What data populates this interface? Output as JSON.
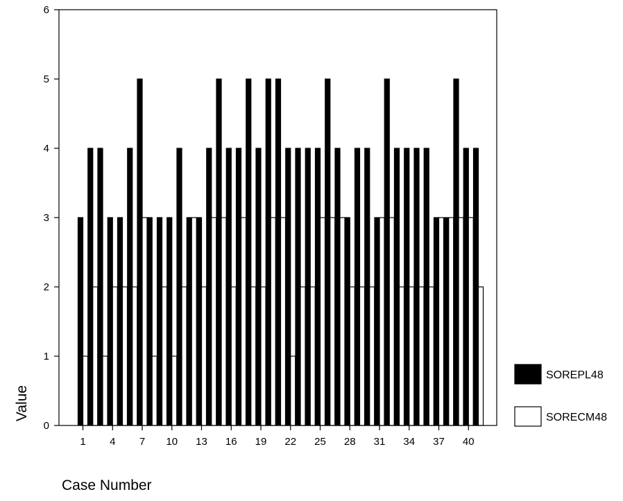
{
  "chart_data": {
    "type": "bar",
    "xlabel": "Case Number",
    "ylabel": "Value",
    "ylim": [
      0,
      6
    ],
    "yticks": [
      "0",
      "1",
      "2",
      "3",
      "4",
      "5",
      "6"
    ],
    "x_tick_labels": [
      "1",
      "4",
      "7",
      "10",
      "13",
      "16",
      "19",
      "22",
      "25",
      "28",
      "31",
      "34",
      "37",
      "40"
    ],
    "x_tick_cases": [
      1,
      4,
      7,
      10,
      13,
      16,
      19,
      22,
      25,
      28,
      31,
      34,
      37,
      40
    ],
    "categories": [
      1,
      2,
      3,
      4,
      5,
      6,
      7,
      8,
      9,
      10,
      11,
      12,
      13,
      14,
      15,
      16,
      17,
      18,
      19,
      20,
      21,
      22,
      23,
      24,
      25,
      26,
      27,
      28,
      29,
      30,
      31,
      32,
      33,
      34,
      35,
      36,
      37,
      38,
      39,
      40,
      41
    ],
    "grid": false,
    "legend_position": "right",
    "series": [
      {
        "name": "SOREPL48",
        "fill": "#000000",
        "values": [
          3,
          4,
          4,
          3,
          3,
          4,
          5,
          3,
          3,
          3,
          4,
          3,
          3,
          4,
          5,
          4,
          4,
          5,
          4,
          5,
          5,
          4,
          4,
          4,
          4,
          5,
          4,
          3,
          4,
          4,
          3,
          5,
          4,
          4,
          4,
          4,
          3,
          3,
          5,
          4,
          4
        ]
      },
      {
        "name": "SORECM48",
        "fill": "#ffffff",
        "values": [
          1,
          2,
          1,
          2,
          2,
          2,
          3,
          1,
          2,
          1,
          2,
          3,
          2,
          3,
          3,
          2,
          3,
          2,
          2,
          3,
          3,
          1,
          2,
          2,
          3,
          3,
          3,
          2,
          2,
          2,
          3,
          3,
          2,
          2,
          2,
          2,
          3,
          3,
          3,
          3,
          2
        ]
      }
    ]
  }
}
